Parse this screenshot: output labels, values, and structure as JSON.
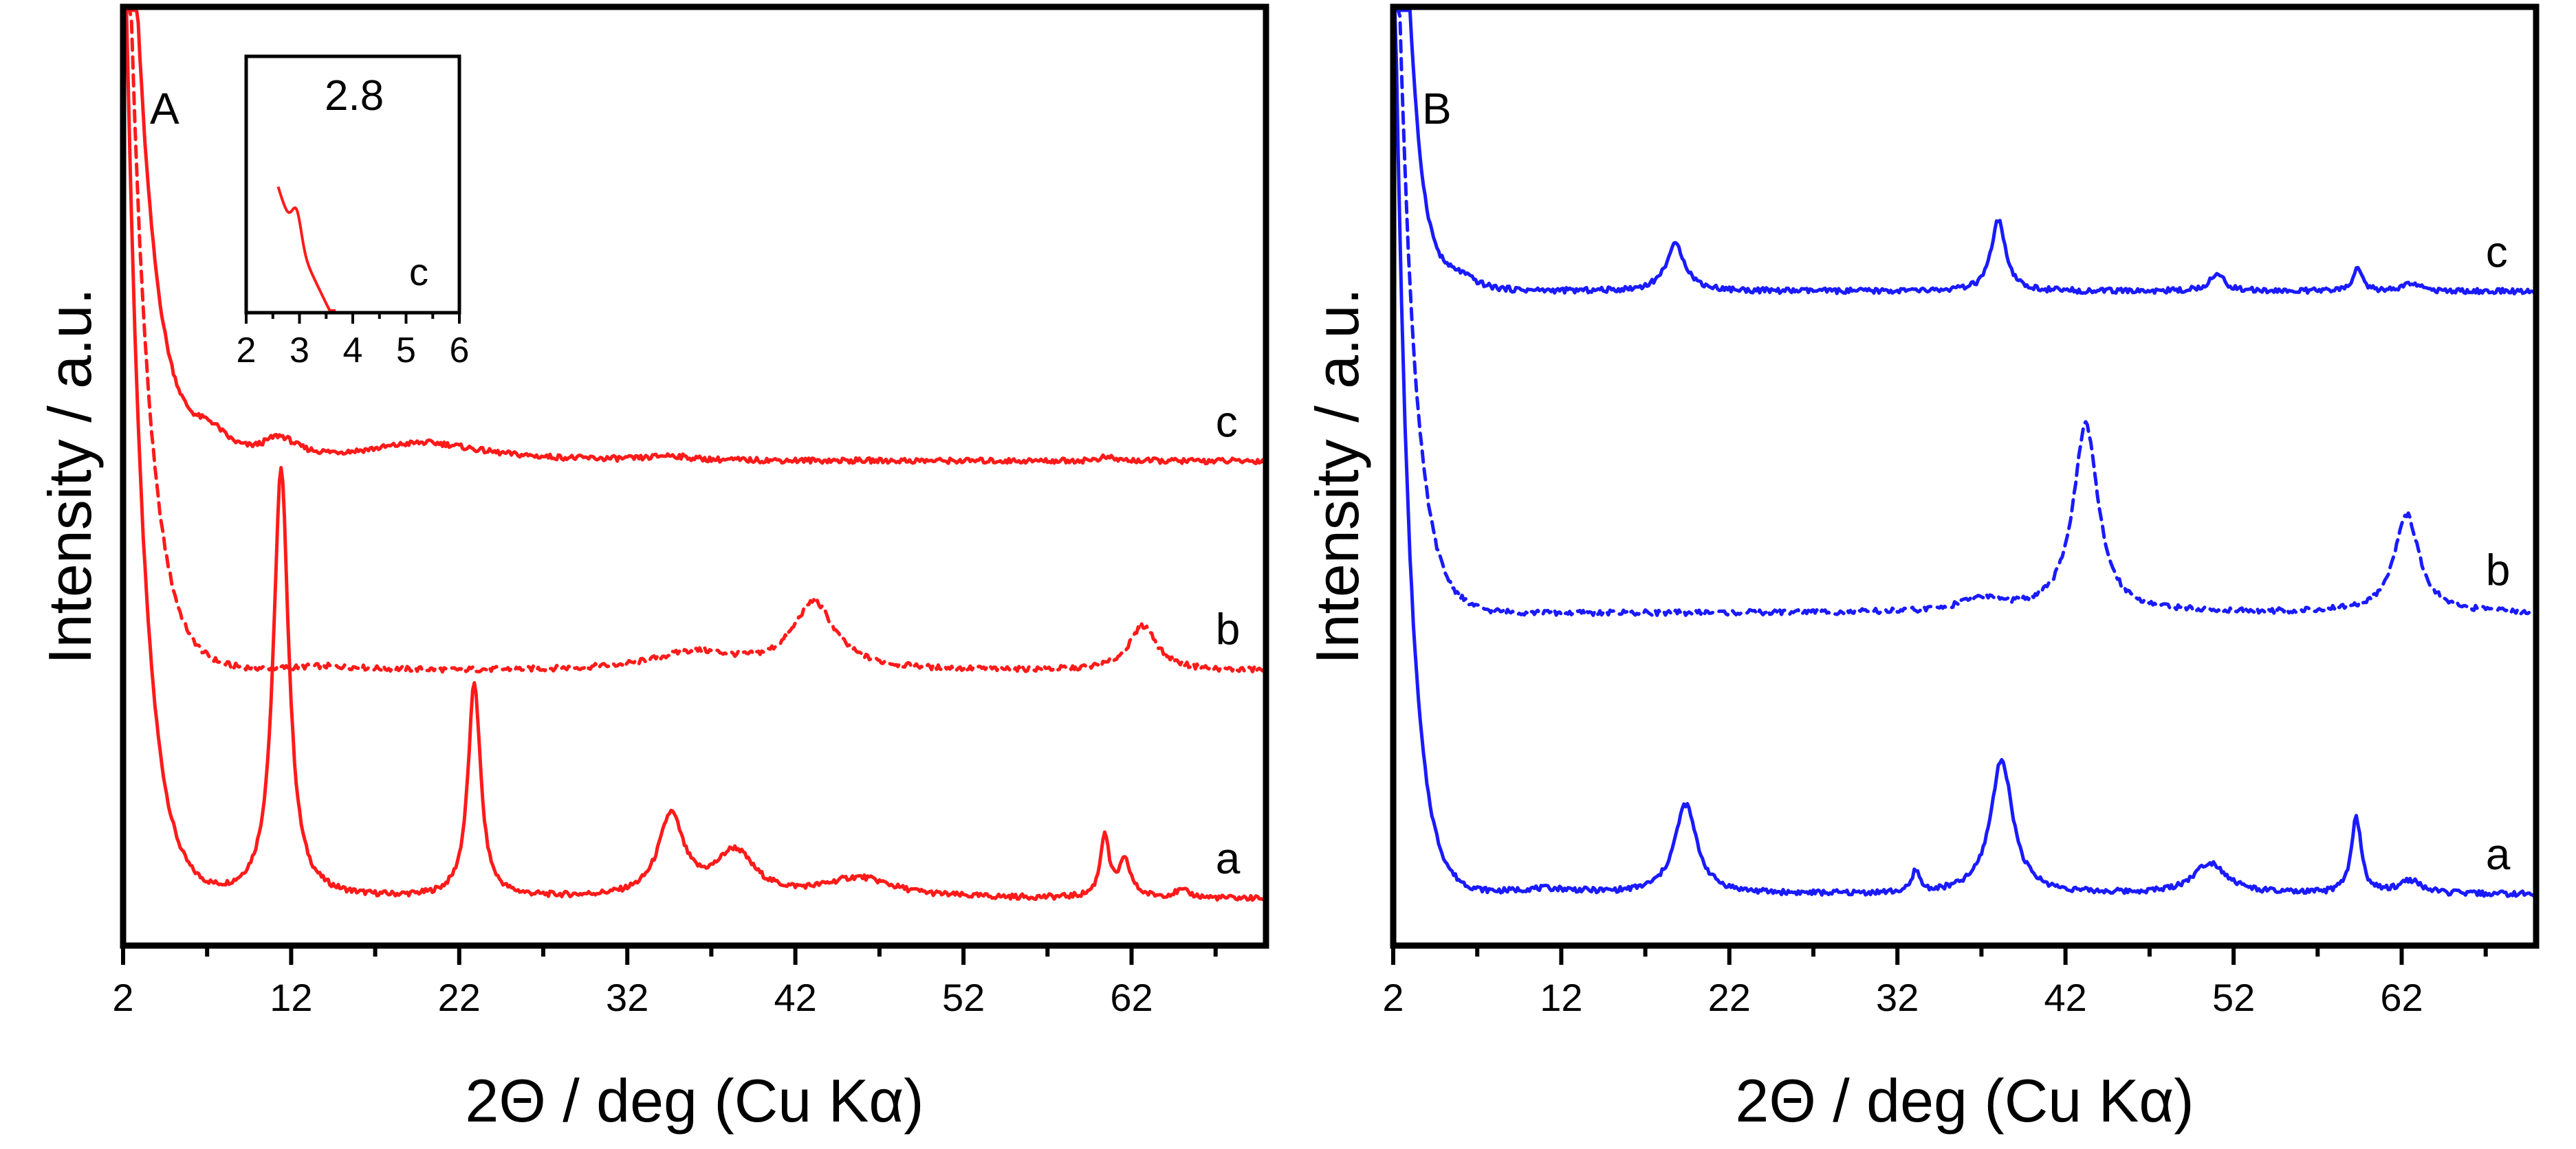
{
  "chart_data": [
    {
      "id": "A",
      "type": "line",
      "panel_label": "A",
      "xlabel": "2Θ / deg (Cu Kα)",
      "ylabel": "Intensity / a.u.",
      "xlim": [
        2,
        70
      ],
      "ylim": [
        0,
        100
      ],
      "x_ticks": [
        "2",
        "12",
        "22",
        "32",
        "42",
        "52",
        "62"
      ],
      "y_ticks": [],
      "color": "#ff1a1a",
      "series": [
        {
          "name": "a",
          "style": "solid",
          "label_x": 67,
          "baseline": 4,
          "lowangle": {
            "amp": 120,
            "decay": 1.1
          },
          "peaks": [
            {
              "x": 11.4,
              "h": 48,
              "w": 0.55
            },
            {
              "x": 22.9,
              "h": 24,
              "w": 0.45
            },
            {
              "x": 34.6,
              "h": 9,
              "w": 0.9
            },
            {
              "x": 38.4,
              "h": 5,
              "w": 1.4
            },
            {
              "x": 45.8,
              "h": 2.2,
              "w": 2.5
            },
            {
              "x": 60.4,
              "h": 7,
              "w": 0.3
            },
            {
              "x": 61.6,
              "h": 4,
              "w": 0.45
            },
            {
              "x": 65,
              "h": 0.8,
              "w": 0.6
            }
          ]
        },
        {
          "name": "b",
          "style": "dashed",
          "label_x": 67,
          "baseline": 29.5,
          "lowangle": {
            "amp": 110,
            "decay": 1.2
          },
          "peaks": [
            {
              "x": 36,
              "h": 2,
              "w": 3
            },
            {
              "x": 43.1,
              "h": 7.5,
              "w": 1.5
            },
            {
              "x": 62.7,
              "h": 5,
              "w": 1
            },
            {
              "x": 14,
              "h": 0.5,
              "w": 3
            }
          ]
        },
        {
          "name": "c",
          "style": "solid",
          "label_x": 67,
          "baseline": 53,
          "lowangle": {
            "amp": 100,
            "decay": 1.25
          },
          "peaks": [
            {
              "x": 7.2,
              "h": 2.6,
              "w": 1.3
            },
            {
              "x": 11.3,
              "h": 2.2,
              "w": 1.2
            },
            {
              "x": 20,
              "h": 2,
              "w": 4
            },
            {
              "x": 34.5,
              "h": 0.5,
              "w": 1.2
            },
            {
              "x": 60.5,
              "h": 0.4,
              "w": 0.6
            }
          ]
        }
      ],
      "inset": {
        "series": "c",
        "annotation": "2.8",
        "label": "c",
        "xlim": [
          2,
          6
        ],
        "x_ticks": [
          "2",
          "3",
          "4",
          "5",
          "6"
        ],
        "color": "#ff1a1a"
      }
    },
    {
      "id": "B",
      "type": "line",
      "panel_label": "B",
      "xlabel": "2Θ / deg (Cu Kα)",
      "ylabel": "Intensity / a.u.",
      "xlim": [
        2,
        70
      ],
      "ylim": [
        0,
        100
      ],
      "x_ticks": [
        "2",
        "12",
        "22",
        "32",
        "42",
        "52",
        "62"
      ],
      "y_ticks": [],
      "color": "#1a1aff",
      "series": [
        {
          "name": "a",
          "style": "solid",
          "label_x": 67,
          "baseline": 4.5,
          "lowangle": {
            "amp": 115,
            "decay": 0.9
          },
          "peaks": [
            {
              "x": 19.4,
              "h": 10,
              "w": 0.8
            },
            {
              "x": 33.1,
              "h": 2.5,
              "w": 0.25
            },
            {
              "x": 38.2,
              "h": 15,
              "w": 0.8
            },
            {
              "x": 50.6,
              "h": 3.5,
              "w": 1.2
            },
            {
              "x": 59.3,
              "h": 8.5,
              "w": 0.35
            },
            {
              "x": 62.5,
              "h": 1.5,
              "w": 0.8
            },
            {
              "x": 11,
              "h": 0.6,
              "w": 2.5
            }
          ]
        },
        {
          "name": "b",
          "style": "dashed",
          "label_x": 67,
          "baseline": 36,
          "lowangle": {
            "amp": 100,
            "decay": 1
          },
          "peaks": [
            {
              "x": 37,
              "h": 1.5,
              "w": 1.5
            },
            {
              "x": 43.2,
              "h": 21,
              "w": 0.9
            },
            {
              "x": 62.3,
              "h": 11,
              "w": 0.9
            }
          ]
        },
        {
          "name": "c",
          "style": "solid",
          "label_x": 67,
          "baseline": 72,
          "lowangle": {
            "amp": 110,
            "decay": 0.8
          },
          "peaks": [
            {
              "x": 6,
              "h": 1.5,
              "w": 1.2
            },
            {
              "x": 18.8,
              "h": 5.2,
              "w": 0.7
            },
            {
              "x": 38,
              "h": 8,
              "w": 0.5
            },
            {
              "x": 51,
              "h": 1.8,
              "w": 0.6
            },
            {
              "x": 59.4,
              "h": 2.8,
              "w": 0.3
            },
            {
              "x": 62.6,
              "h": 1,
              "w": 0.5
            }
          ]
        }
      ]
    }
  ]
}
